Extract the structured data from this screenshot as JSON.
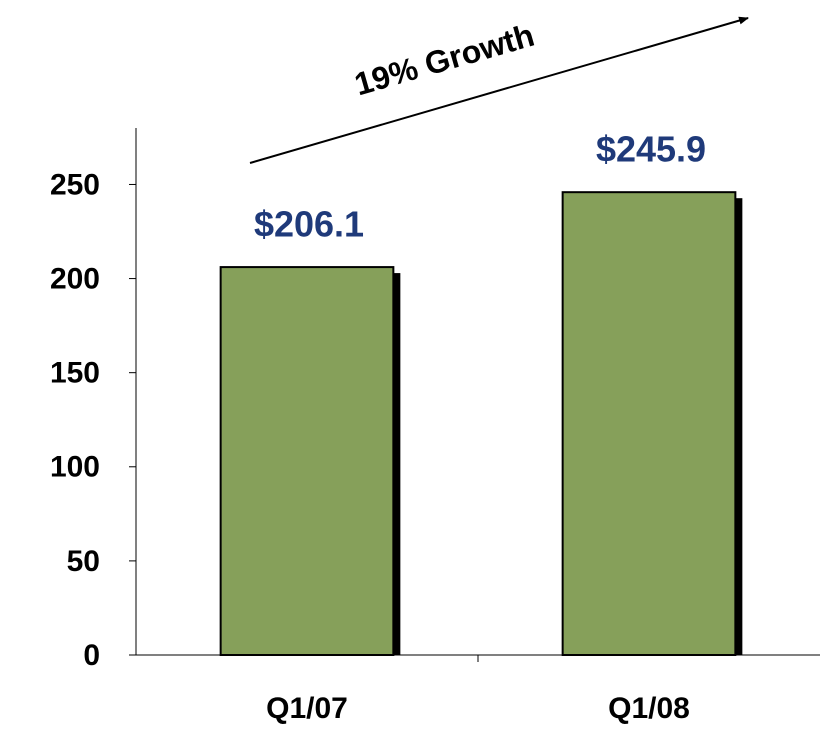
{
  "chart_data": {
    "type": "bar",
    "categories": [
      "Q1/07",
      "Q1/08"
    ],
    "values": [
      206.1,
      245.9
    ],
    "value_labels": [
      "$206.1",
      "$245.9"
    ],
    "color": "#86a05a",
    "label_color": "#1f3a7a",
    "annotation": "19% Growth",
    "ylim": [
      0,
      280
    ],
    "yticks": [
      0,
      50,
      100,
      150,
      200,
      250
    ],
    "grid": false
  }
}
